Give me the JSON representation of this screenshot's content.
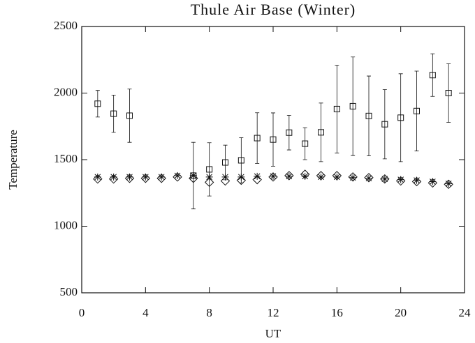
{
  "chart_data": {
    "type": "scatter",
    "title": "Thule Air Base (Winter)",
    "x_label": "UT",
    "y_label": "Temperature",
    "xlim": [
      0,
      24
    ],
    "xticks": [
      0,
      4,
      8,
      12,
      16,
      20,
      24
    ],
    "ylim": [
      500,
      2500
    ],
    "yticks": [
      500,
      1000,
      1500,
      2000,
      2500
    ],
    "series": [
      {
        "marker": "square",
        "color": "#111111",
        "x": [
          1,
          2,
          3,
          7,
          8,
          9,
          10,
          11,
          12,
          13,
          14,
          15,
          16,
          17,
          18,
          19,
          20,
          21,
          22,
          23
        ],
        "values": [
          1920,
          1845,
          1830,
          1380,
          1427,
          1479,
          1495,
          1662,
          1651,
          1703,
          1620,
          1705,
          1880,
          1901,
          1828,
          1766,
          1815,
          1865,
          2135,
          2000
        ],
        "errors": [
          100,
          140,
          200,
          250,
          200,
          130,
          170,
          190,
          200,
          130,
          120,
          220,
          330,
          370,
          300,
          260,
          330,
          300,
          160,
          220
        ]
      },
      {
        "marker": "diamond",
        "color": "#111111",
        "x": [
          1,
          2,
          3,
          4,
          5,
          6,
          7,
          8,
          9,
          10,
          11,
          12,
          13,
          14,
          15,
          16,
          17,
          18,
          19,
          20,
          21,
          22,
          23
        ],
        "values": [
          1355,
          1355,
          1360,
          1360,
          1360,
          1370,
          1360,
          1330,
          1340,
          1345,
          1350,
          1370,
          1380,
          1390,
          1380,
          1380,
          1370,
          1365,
          1355,
          1340,
          1335,
          1325,
          1315
        ]
      },
      {
        "marker": "asterisk",
        "color": "#111111",
        "x": [
          1,
          2,
          3,
          4,
          5,
          6,
          7,
          8,
          9,
          10,
          11,
          12,
          13,
          14,
          15,
          16,
          17,
          18,
          19,
          20,
          21,
          22,
          23
        ],
        "values": [
          1370,
          1370,
          1370,
          1370,
          1370,
          1380,
          1380,
          1370,
          1370,
          1370,
          1375,
          1375,
          1375,
          1375,
          1370,
          1370,
          1365,
          1360,
          1355,
          1350,
          1345,
          1335,
          1320
        ]
      }
    ]
  }
}
